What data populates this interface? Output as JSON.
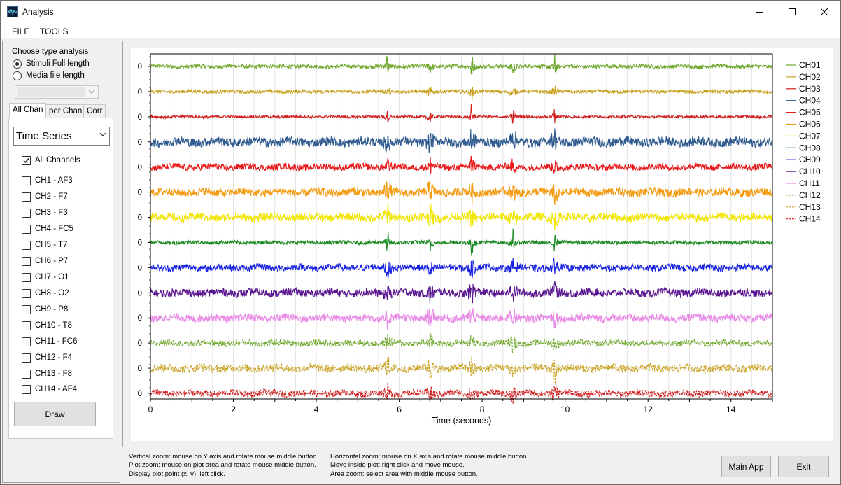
{
  "window": {
    "title": "Analysis"
  },
  "menu": {
    "file": "FILE",
    "tools": "TOOLS"
  },
  "left": {
    "choose_label": "Choose type analysis",
    "radios": [
      {
        "label": "Stimuli Full length",
        "checked": true
      },
      {
        "label": "Media file length",
        "checked": false
      }
    ],
    "tabs": [
      "All Chan",
      "per Chan",
      "Corr"
    ],
    "active_tab": 0,
    "plot_type": "Time Series",
    "all_channels": {
      "label": "All Channels",
      "checked": true
    },
    "channels": [
      "CH1 - AF3",
      "CH2 - F7",
      "CH3 - F3",
      "CH4 - FC5",
      "CH5 - T7",
      "CH6 - P7",
      "CH7 - O1",
      "CH8 - O2",
      "CH9 - P8",
      "CH10 - T8",
      "CH11 - FC6",
      "CH12 - F4",
      "CH13 - F8",
      "CH14 - AF4"
    ],
    "draw_label": "Draw"
  },
  "help": {
    "col1": [
      "Vertical zoom: mouse on Y axis and rotate mouse middle button.",
      "Plot zoom: mouse on plot area and rotate mouse middle button.",
      "Display plot point (x, y): left click."
    ],
    "col2": [
      "Horizontal zoom: mouse on X axis and rotate mouse middle button.",
      "Move inside plot: right click and move mouse.",
      "Area zoom: select area with middle mouse button."
    ]
  },
  "buttons": {
    "main_app": "Main App",
    "exit": "Exit"
  },
  "chart_data": {
    "type": "line",
    "xlabel": "Time (seconds)",
    "xlim": [
      0,
      15
    ],
    "x_ticks": [
      0,
      2,
      4,
      6,
      8,
      10,
      12,
      14
    ],
    "y_tick_label": "0",
    "grid": true,
    "legend_placement": "right",
    "event_markers_seconds": [
      5.72,
      6.75,
      7.75,
      8.75,
      9.75
    ],
    "series": [
      {
        "name": "CH01",
        "color": "#6fa82c",
        "style": "solid",
        "amplitude": 2.6
      },
      {
        "name": "CH02",
        "color": "#c8a21e",
        "style": "solid",
        "amplitude": 2.4
      },
      {
        "name": "CH03",
        "color": "#d11f1f",
        "style": "solid",
        "amplitude": 1.8
      },
      {
        "name": "CH04",
        "color": "#2e5a8f",
        "style": "solid",
        "amplitude": 6.5
      },
      {
        "name": "CH05",
        "color": "#e8191b",
        "style": "solid",
        "amplitude": 4.5
      },
      {
        "name": "CH06",
        "color": "#f49b12",
        "style": "solid",
        "amplitude": 5.8
      },
      {
        "name": "CH07",
        "color": "#f0e600",
        "style": "solid",
        "amplitude": 5.8
      },
      {
        "name": "CH08",
        "color": "#1b8a22",
        "style": "solid",
        "amplitude": 2.4
      },
      {
        "name": "CH09",
        "color": "#1a24e0",
        "style": "solid",
        "amplitude": 4.8
      },
      {
        "name": "CH10",
        "color": "#5a1690",
        "style": "solid",
        "amplitude": 5.5
      },
      {
        "name": "CH11",
        "color": "#e88ae6",
        "style": "solid",
        "amplitude": 5.5
      },
      {
        "name": "CH12",
        "color": "#6fa82c",
        "style": "dashed",
        "amplitude": 4.2
      },
      {
        "name": "CH13",
        "color": "#c8a21e",
        "style": "dashed",
        "amplitude": 5.5
      },
      {
        "name": "CH14",
        "color": "#d11f1f",
        "style": "dashed",
        "amplitude": 4.8
      }
    ]
  }
}
